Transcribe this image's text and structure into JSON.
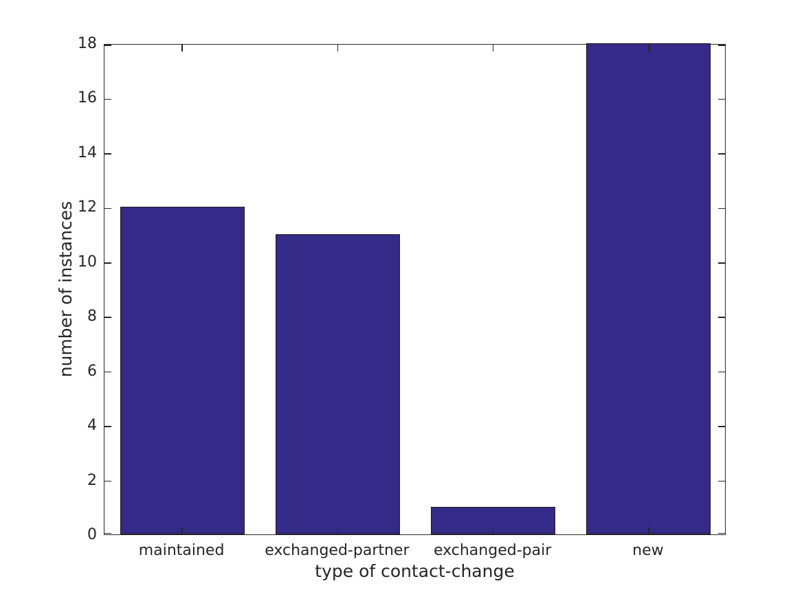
{
  "chart_data": {
    "type": "bar",
    "title": "",
    "categories": [
      "maintained",
      "exchanged-partner",
      "exchanged-pair",
      "new"
    ],
    "values": [
      12,
      11,
      1,
      18
    ],
    "xlabel": "type of contact-change",
    "ylabel": "number of instances",
    "ylim": [
      0,
      18
    ],
    "yticks": [
      0,
      2,
      4,
      6,
      8,
      10,
      12,
      14,
      16,
      18
    ],
    "xlim": [
      0.5,
      4.5
    ],
    "bar_width_fraction": 0.8,
    "bar_color": "#352a87",
    "bar_edge_color": "#1a1a1a",
    "axis_color": "#262626",
    "background_color": "#ffffff",
    "grid": false,
    "legend": null,
    "tick_direction": "in",
    "box": true
  }
}
